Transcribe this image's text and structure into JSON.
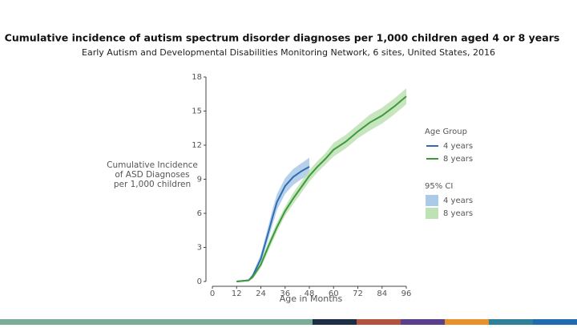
{
  "chart_data": {
    "type": "line",
    "title": "Cumulative incidence of autism spectrum disorder diagnoses per 1,000 children aged 4 or 8 years",
    "subtitle": "Early Autism and Developmental Disabilities Monitoring Network, 6 sites, United States, 2016",
    "xlabel": "Age in Months",
    "ylabel": [
      "Cumulative Incidence",
      "of ASD Diagnoses",
      "per 1,000 children"
    ],
    "legend_title": "Age Group",
    "ci_legend_title": "95% CI",
    "x": [
      12,
      18,
      20,
      24,
      28,
      30,
      32,
      36,
      40,
      44,
      48,
      52,
      56,
      60,
      66,
      72,
      78,
      84,
      90,
      96
    ],
    "xlim": [
      0,
      96
    ],
    "xticks": [
      0,
      12,
      24,
      36,
      48,
      60,
      72,
      84,
      96
    ],
    "ylim": [
      0,
      18
    ],
    "yticks": [
      0,
      3,
      6,
      9,
      12,
      15,
      18
    ],
    "series": [
      {
        "name": "4 years",
        "color": "#2f6db3",
        "ci_color": "#abc9e8",
        "values": [
          0,
          0.1,
          0.5,
          2,
          4.5,
          5.8,
          7,
          8.4,
          9.2,
          9.7,
          10.1,
          null,
          null,
          null,
          null,
          null,
          null,
          null,
          null,
          null
        ],
        "ci_lower": [
          0,
          0.05,
          0.3,
          1.6,
          3.9,
          5.1,
          6.3,
          7.7,
          8.5,
          9.0,
          9.4,
          null,
          null,
          null,
          null,
          null,
          null,
          null,
          null,
          null
        ],
        "ci_upper": [
          0,
          0.2,
          0.7,
          2.4,
          5.1,
          6.5,
          7.7,
          9.1,
          9.9,
          10.4,
          10.9,
          null,
          null,
          null,
          null,
          null,
          null,
          null,
          null,
          null
        ]
      },
      {
        "name": "8 years",
        "color": "#3c9a3c",
        "ci_color": "#bde2b4",
        "values": [
          0,
          0.1,
          0.4,
          1.5,
          3.2,
          4,
          4.8,
          6.2,
          7.3,
          8.3,
          9.3,
          10.1,
          10.8,
          11.6,
          12.3,
          13.2,
          14,
          14.6,
          15.4,
          16.3
        ],
        "ci_lower": [
          0,
          0.05,
          0.25,
          1.2,
          2.8,
          3.6,
          4.4,
          5.8,
          6.8,
          7.8,
          8.8,
          9.6,
          10.3,
          11.0,
          11.7,
          12.6,
          13.3,
          13.9,
          14.7,
          15.6
        ],
        "ci_upper": [
          0,
          0.15,
          0.55,
          1.8,
          3.6,
          4.4,
          5.2,
          6.6,
          7.8,
          8.8,
          9.8,
          10.6,
          11.3,
          12.2,
          12.9,
          13.8,
          14.7,
          15.3,
          16.1,
          17.0
        ]
      }
    ]
  }
}
